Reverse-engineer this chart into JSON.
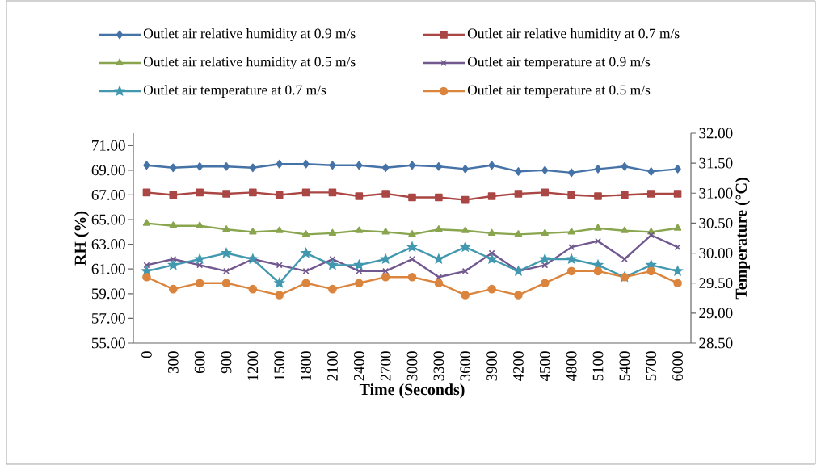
{
  "chart_data": {
    "type": "line",
    "xlabel": "Time (Seconds)",
    "ylabel": "RH (%)",
    "y2label": "Temperature (°C)",
    "categories": [
      "0",
      "300",
      "600",
      "900",
      "1200",
      "1500",
      "1800",
      "2100",
      "2400",
      "2700",
      "3000",
      "3300",
      "3600",
      "3900",
      "4200",
      "4500",
      "4800",
      "5100",
      "5400",
      "5700",
      "6000"
    ],
    "ylim": [
      55,
      72
    ],
    "yticks": [
      {
        "value": 55,
        "label": "55.00"
      },
      {
        "value": 57,
        "label": "57.00"
      },
      {
        "value": 59,
        "label": "59.00"
      },
      {
        "value": 61,
        "label": "61.00"
      },
      {
        "value": 63,
        "label": "63.00"
      },
      {
        "value": 65,
        "label": "65.00"
      },
      {
        "value": 67,
        "label": "67.00"
      },
      {
        "value": 69,
        "label": "69.00"
      },
      {
        "value": 71,
        "label": "71.00"
      }
    ],
    "y2lim": [
      28.5,
      32
    ],
    "y2ticks": [
      {
        "value": 28.5,
        "label": "28.50"
      },
      {
        "value": 29,
        "label": "29.00"
      },
      {
        "value": 29.5,
        "label": "29.50"
      },
      {
        "value": 30,
        "label": "30.00"
      },
      {
        "value": 30.5,
        "label": "30.50"
      },
      {
        "value": 31,
        "label": "31.00"
      },
      {
        "value": 31.5,
        "label": "31.50"
      },
      {
        "value": 32,
        "label": "32.00"
      }
    ],
    "legend": "top",
    "line_style": "solid",
    "series": [
      {
        "name": "Outlet air relative humidity at 0.9 m/s",
        "color": "#4572a7",
        "marker": "diamond",
        "values": [
          69.4,
          69.2,
          69.3,
          69.3,
          69.2,
          69.5,
          69.5,
          69.4,
          69.4,
          69.2,
          69.4,
          69.3,
          69.1,
          69.4,
          68.9,
          69.0,
          68.8,
          69.1,
          69.3,
          68.9,
          69.1
        ]
      },
      {
        "name": "Outlet air relative humidity at 0.7 m/s",
        "color": "#aa4643",
        "marker": "square",
        "values": [
          67.2,
          67.0,
          67.2,
          67.1,
          67.2,
          67.0,
          67.2,
          67.2,
          66.9,
          67.1,
          66.8,
          66.8,
          66.6,
          66.9,
          67.1,
          67.2,
          67.0,
          66.9,
          67.0,
          67.1,
          67.1
        ]
      },
      {
        "name": "Outlet air relative humidity at 0.5 m/s",
        "color": "#89a54e",
        "marker": "triangle",
        "values": [
          64.7,
          64.5,
          64.5,
          64.2,
          64.0,
          64.1,
          63.8,
          63.9,
          64.1,
          64.0,
          63.8,
          64.2,
          64.1,
          63.9,
          63.8,
          63.9,
          64.0,
          64.3,
          64.1,
          64.0,
          64.3
        ]
      },
      {
        "name": "Outlet air temperature at 0.9 m/s",
        "color": "#71588f",
        "marker": "cross",
        "axis": "y2",
        "values": [
          29.8,
          29.9,
          29.8,
          29.7,
          29.9,
          29.8,
          29.7,
          29.9,
          29.7,
          29.7,
          29.9,
          29.6,
          29.7,
          30.0,
          29.7,
          29.8,
          30.1,
          30.2,
          29.9,
          30.3,
          30.1
        ]
      },
      {
        "name": "Outlet air temperature at 0.7 m/s",
        "color": "#4198af",
        "marker": "star",
        "axis": "y2",
        "values": [
          29.7,
          29.8,
          29.9,
          30.0,
          29.9,
          29.5,
          30.0,
          29.8,
          29.8,
          29.9,
          30.1,
          29.9,
          30.1,
          29.9,
          29.7,
          29.9,
          29.9,
          29.8,
          29.6,
          29.8,
          29.7
        ]
      },
      {
        "name": "Outlet air temperature at 0.5 m/s",
        "color": "#db843d",
        "marker": "circle",
        "axis": "y2",
        "values": [
          29.6,
          29.4,
          29.5,
          29.5,
          29.4,
          29.3,
          29.5,
          29.4,
          29.5,
          29.6,
          29.6,
          29.5,
          29.3,
          29.4,
          29.3,
          29.5,
          29.7,
          29.7,
          29.6,
          29.7,
          29.5
        ]
      }
    ]
  }
}
